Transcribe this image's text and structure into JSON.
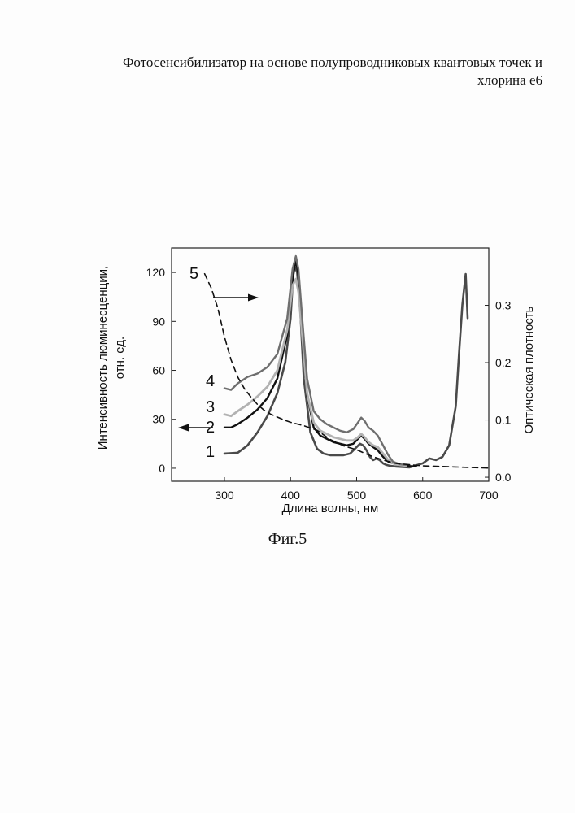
{
  "header": {
    "line1": "Фотосенсибилизатор на основе полупроводниковых квантовых точек и",
    "line2": "хлорина е6"
  },
  "caption": "Фиг.5",
  "chart_data": {
    "type": "line",
    "title": "",
    "xlabel": "Длина волны, нм",
    "ylabel_left_line1": "Интенсивность люминесценции,",
    "ylabel_left_line2": "отн. ед.",
    "ylabel_right": "Оптическая плотность",
    "xlim": [
      220,
      700
    ],
    "ylim_left": [
      -8,
      135
    ],
    "ylim_right": [
      -0.007,
      0.4
    ],
    "x_ticks": [
      300,
      400,
      500,
      600,
      700
    ],
    "y_left_ticks": [
      0,
      30,
      60,
      90,
      120
    ],
    "y_right_ticks": [
      0.0,
      0.1,
      0.2,
      0.3
    ],
    "x_tick_labels": [
      "300",
      "400",
      "500",
      "600",
      "700"
    ],
    "y_left_tick_labels": [
      "0",
      "30",
      "60",
      "90",
      "120"
    ],
    "y_right_tick_labels": [
      "0.0",
      "0.1",
      "0.2",
      "0.3"
    ],
    "grid": false,
    "series": [
      {
        "name": "1",
        "axis": "left",
        "color": "#4a4a4a",
        "width": 2.6,
        "dash": "",
        "x": [
          300,
          320,
          335,
          350,
          365,
          380,
          392,
          400,
          405,
          410,
          415,
          420,
          430,
          440,
          450,
          460,
          470,
          480,
          490,
          500,
          505,
          510,
          515,
          520,
          525,
          530,
          535,
          540,
          545,
          550,
          560,
          580,
          600,
          610,
          620,
          630,
          640,
          650,
          655,
          660,
          665,
          668
        ],
        "y": [
          9,
          9.5,
          14,
          22,
          32,
          46,
          65,
          92,
          125,
          120,
          95,
          55,
          22,
          12,
          9,
          8,
          8,
          8,
          9,
          13,
          15,
          14,
          11,
          7,
          5,
          6,
          5,
          3,
          2,
          1.5,
          1,
          0.5,
          3,
          6,
          5,
          7,
          14,
          38,
          70,
          100,
          119,
          92
        ]
      },
      {
        "name": "2",
        "axis": "left",
        "color": "#111111",
        "width": 2.4,
        "dash": "",
        "x": [
          300,
          310,
          320,
          335,
          350,
          365,
          380,
          395,
          403,
          408,
          412,
          418,
          425,
          435,
          445,
          455,
          465,
          475,
          485,
          495,
          502,
          507,
          512,
          518,
          525,
          532,
          540,
          548,
          555,
          565,
          575,
          590
        ],
        "y": [
          25,
          25,
          27,
          31,
          36,
          43,
          55,
          82,
          115,
          128,
          118,
          85,
          45,
          25,
          20,
          18,
          16,
          15,
          14,
          15,
          18,
          20,
          18,
          15,
          13,
          11,
          7,
          4,
          3,
          2,
          1.5,
          1
        ]
      },
      {
        "name": "3",
        "axis": "left",
        "color": "#b2b2b2",
        "width": 2.8,
        "dash": "",
        "x": [
          300,
          310,
          320,
          335,
          350,
          365,
          380,
          395,
          403,
          408,
          412,
          418,
          425,
          435,
          445,
          455,
          465,
          475,
          485,
          495,
          502,
          507,
          512,
          518,
          525,
          532,
          540,
          548,
          555,
          565,
          575
        ],
        "y": [
          33,
          32,
          35,
          39,
          44,
          50,
          60,
          85,
          112,
          116,
          108,
          80,
          46,
          28,
          23,
          21,
          19,
          18,
          17,
          17,
          19,
          21,
          19,
          16,
          14,
          13,
          9,
          5,
          3,
          2,
          1.5
        ]
      },
      {
        "name": "4",
        "axis": "left",
        "color": "#6f6f6f",
        "width": 2.4,
        "dash": "",
        "x": [
          300,
          310,
          320,
          335,
          350,
          365,
          380,
          395,
          403,
          408,
          412,
          418,
          425,
          435,
          445,
          455,
          465,
          475,
          485,
          495,
          502,
          507,
          512,
          518,
          525,
          532,
          540,
          548,
          555,
          565,
          575
        ],
        "y": [
          49,
          48,
          52,
          56,
          58,
          62,
          70,
          92,
          122,
          130,
          122,
          90,
          55,
          35,
          30,
          27,
          25,
          23,
          22,
          24,
          28,
          31,
          29,
          25,
          23,
          20,
          14,
          8,
          4,
          2.5,
          2
        ]
      },
      {
        "name": "5",
        "axis": "right",
        "color": "#111111",
        "width": 1.6,
        "dash": "7,5",
        "x": [
          270,
          280,
          290,
          300,
          310,
          320,
          330,
          340,
          350,
          360,
          370,
          380,
          390,
          400,
          420,
          440,
          460,
          480,
          500,
          520,
          540,
          560,
          600,
          650,
          700
        ],
        "y": [
          0.355,
          0.33,
          0.295,
          0.245,
          0.205,
          0.175,
          0.155,
          0.14,
          0.127,
          0.117,
          0.11,
          0.105,
          0.1,
          0.096,
          0.09,
          0.082,
          0.066,
          0.055,
          0.048,
          0.038,
          0.03,
          0.024,
          0.02,
          0.018,
          0.016
        ]
      }
    ],
    "curve_labels": [
      "1",
      "2",
      "3",
      "4",
      "5"
    ]
  }
}
